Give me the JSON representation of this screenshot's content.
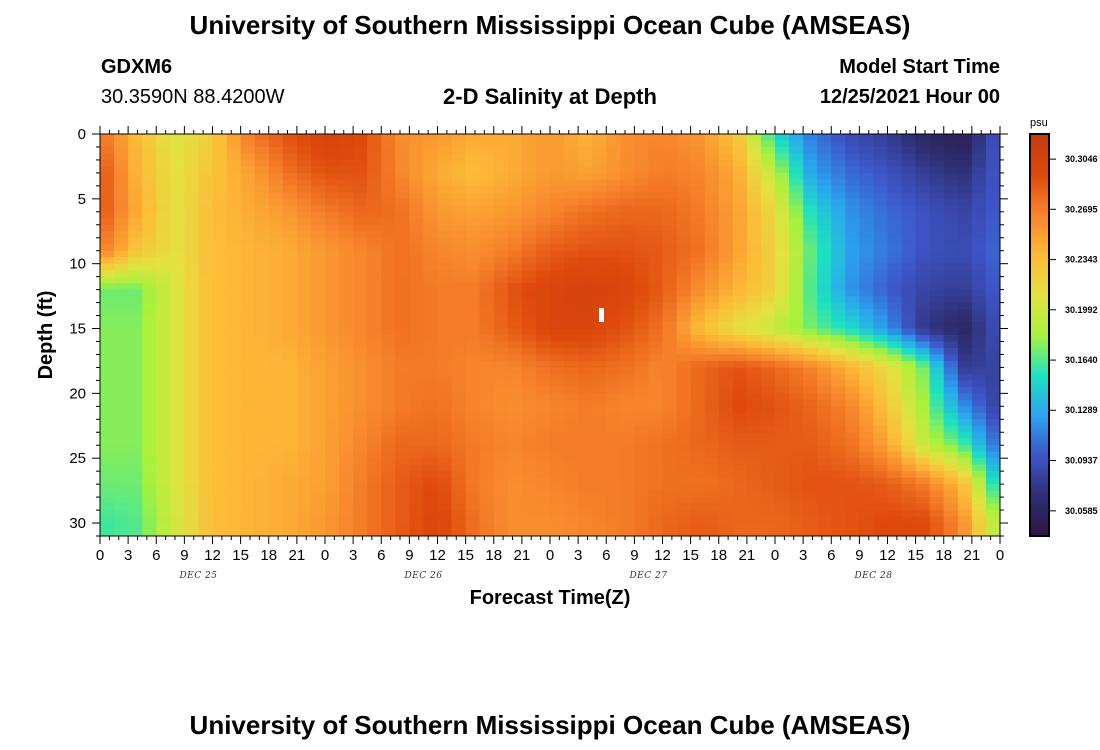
{
  "header": {
    "title": "University of Southern Mississippi Ocean Cube (AMSEAS)",
    "station_id": "GDXM6",
    "station_coords": "30.3590N  88.4200W",
    "plot_title": "2-D Salinity at Depth",
    "model_start_label": "Model Start Time",
    "model_start_value": "12/25/2021 Hour 00"
  },
  "footer": {
    "title": "University of Southern Mississippi Ocean Cube (AMSEAS)"
  },
  "colors": {
    "scale": [
      "#2b1744",
      "#2e2f73",
      "#3e55c8",
      "#2aa3f0",
      "#1ce2c0",
      "#a6f13c",
      "#e4e142",
      "#fdb937",
      "#f7832c",
      "#df4a0c",
      "#c03a0f"
    ]
  },
  "chart_data": {
    "type": "heatmap",
    "title": "2-D Salinity at Depth",
    "xlabel": "Forecast Time(Z)",
    "ylabel": "Depth (ft)",
    "x_tick_labels": [
      "0",
      "3",
      "6",
      "9",
      "12",
      "15",
      "18",
      "21",
      "0",
      "3",
      "6",
      "9",
      "12",
      "15",
      "18",
      "21",
      "0",
      "3",
      "6",
      "9",
      "12",
      "15",
      "18",
      "21",
      "0",
      "3",
      "6",
      "9",
      "12",
      "15",
      "18",
      "21",
      "0"
    ],
    "x_hours": [
      0,
      96
    ],
    "day_labels": [
      {
        "label": "DEC 25",
        "hour": 10.5
      },
      {
        "label": "DEC 26",
        "hour": 34.5
      },
      {
        "label": "DEC 27",
        "hour": 58.5
      },
      {
        "label": "DEC 28",
        "hour": 82.5
      }
    ],
    "y_ticks": [
      0,
      5,
      10,
      15,
      20,
      25,
      30
    ],
    "ylim": [
      0,
      31
    ],
    "y_inverted": true,
    "colorbar": {
      "unit": "psu",
      "labels": [
        "30.3046",
        "30.2695",
        "30.2343",
        "30.1992",
        "30.1640",
        "30.1289",
        "30.0937",
        "30.0585"
      ],
      "range": [
        30.0409,
        30.3222
      ]
    },
    "times": [
      0,
      4,
      8,
      12,
      16,
      20,
      24,
      28,
      32,
      36,
      40,
      44,
      48,
      52,
      56,
      60,
      64,
      68,
      72,
      76,
      80,
      84,
      88,
      92,
      96
    ],
    "depths": [
      0,
      3,
      6,
      9,
      12,
      15,
      18,
      21,
      24,
      27,
      30
    ],
    "values": [
      [
        30.275,
        30.235,
        30.205,
        30.225,
        30.27,
        30.29,
        30.305,
        30.295,
        30.26,
        30.255,
        30.245,
        30.245,
        30.255,
        30.24,
        30.26,
        30.265,
        30.255,
        30.23,
        30.15,
        30.11,
        30.09,
        30.08,
        30.06,
        30.05,
        30.1
      ],
      [
        30.29,
        30.24,
        30.21,
        30.23,
        30.25,
        30.275,
        30.29,
        30.29,
        30.265,
        30.245,
        30.235,
        30.245,
        30.255,
        30.25,
        30.26,
        30.27,
        30.265,
        30.245,
        30.19,
        30.125,
        30.105,
        30.095,
        30.08,
        30.07,
        30.1
      ],
      [
        30.29,
        30.245,
        30.21,
        30.235,
        30.245,
        30.255,
        30.27,
        30.28,
        30.275,
        30.255,
        30.25,
        30.255,
        30.265,
        30.275,
        30.28,
        30.28,
        30.27,
        30.25,
        30.215,
        30.15,
        30.12,
        30.105,
        30.095,
        30.085,
        30.1
      ],
      [
        30.27,
        30.23,
        30.21,
        30.235,
        30.24,
        30.245,
        30.255,
        30.265,
        30.275,
        30.265,
        30.26,
        30.27,
        30.285,
        30.29,
        30.29,
        30.285,
        30.275,
        30.25,
        30.22,
        30.165,
        30.125,
        30.11,
        30.095,
        30.09,
        30.105
      ],
      [
        30.17,
        30.17,
        30.205,
        30.235,
        30.24,
        30.245,
        30.255,
        30.265,
        30.275,
        30.27,
        30.27,
        30.29,
        30.3,
        30.305,
        30.3,
        30.285,
        30.26,
        30.24,
        30.22,
        30.16,
        30.12,
        30.1,
        30.085,
        30.08,
        30.1
      ],
      [
        30.175,
        30.175,
        30.205,
        30.235,
        30.24,
        30.245,
        30.255,
        30.265,
        30.275,
        30.27,
        30.27,
        30.285,
        30.3,
        30.3,
        30.29,
        30.275,
        30.235,
        30.21,
        30.195,
        30.17,
        30.15,
        30.12,
        30.075,
        30.06,
        30.095
      ],
      [
        30.175,
        30.175,
        30.205,
        30.235,
        30.24,
        30.24,
        30.25,
        30.26,
        30.27,
        30.27,
        30.265,
        30.265,
        30.275,
        30.28,
        30.275,
        30.265,
        30.28,
        30.29,
        30.28,
        30.265,
        30.24,
        30.215,
        30.17,
        30.08,
        30.085
      ],
      [
        30.175,
        30.175,
        30.205,
        30.235,
        30.24,
        30.24,
        30.25,
        30.26,
        30.27,
        30.275,
        30.265,
        30.26,
        30.265,
        30.27,
        30.265,
        30.265,
        30.28,
        30.295,
        30.29,
        30.28,
        30.265,
        30.23,
        30.18,
        30.12,
        30.08
      ],
      [
        30.175,
        30.175,
        30.205,
        30.235,
        30.24,
        30.24,
        30.25,
        30.265,
        30.28,
        30.28,
        30.27,
        30.265,
        30.27,
        30.27,
        30.27,
        30.275,
        30.28,
        30.285,
        30.285,
        30.285,
        30.275,
        30.25,
        30.195,
        30.165,
        30.1
      ],
      [
        30.17,
        30.17,
        30.205,
        30.235,
        30.24,
        30.245,
        30.25,
        30.27,
        30.285,
        30.295,
        30.27,
        30.26,
        30.265,
        30.27,
        30.27,
        30.275,
        30.275,
        30.28,
        30.285,
        30.29,
        30.29,
        30.285,
        30.27,
        30.235,
        30.14
      ],
      [
        30.16,
        30.165,
        30.2,
        30.235,
        30.24,
        30.245,
        30.255,
        30.27,
        30.285,
        30.3,
        30.275,
        30.26,
        30.26,
        30.265,
        30.27,
        30.28,
        30.285,
        30.28,
        30.28,
        30.285,
        30.29,
        30.295,
        30.295,
        30.26,
        30.18
      ]
    ]
  }
}
